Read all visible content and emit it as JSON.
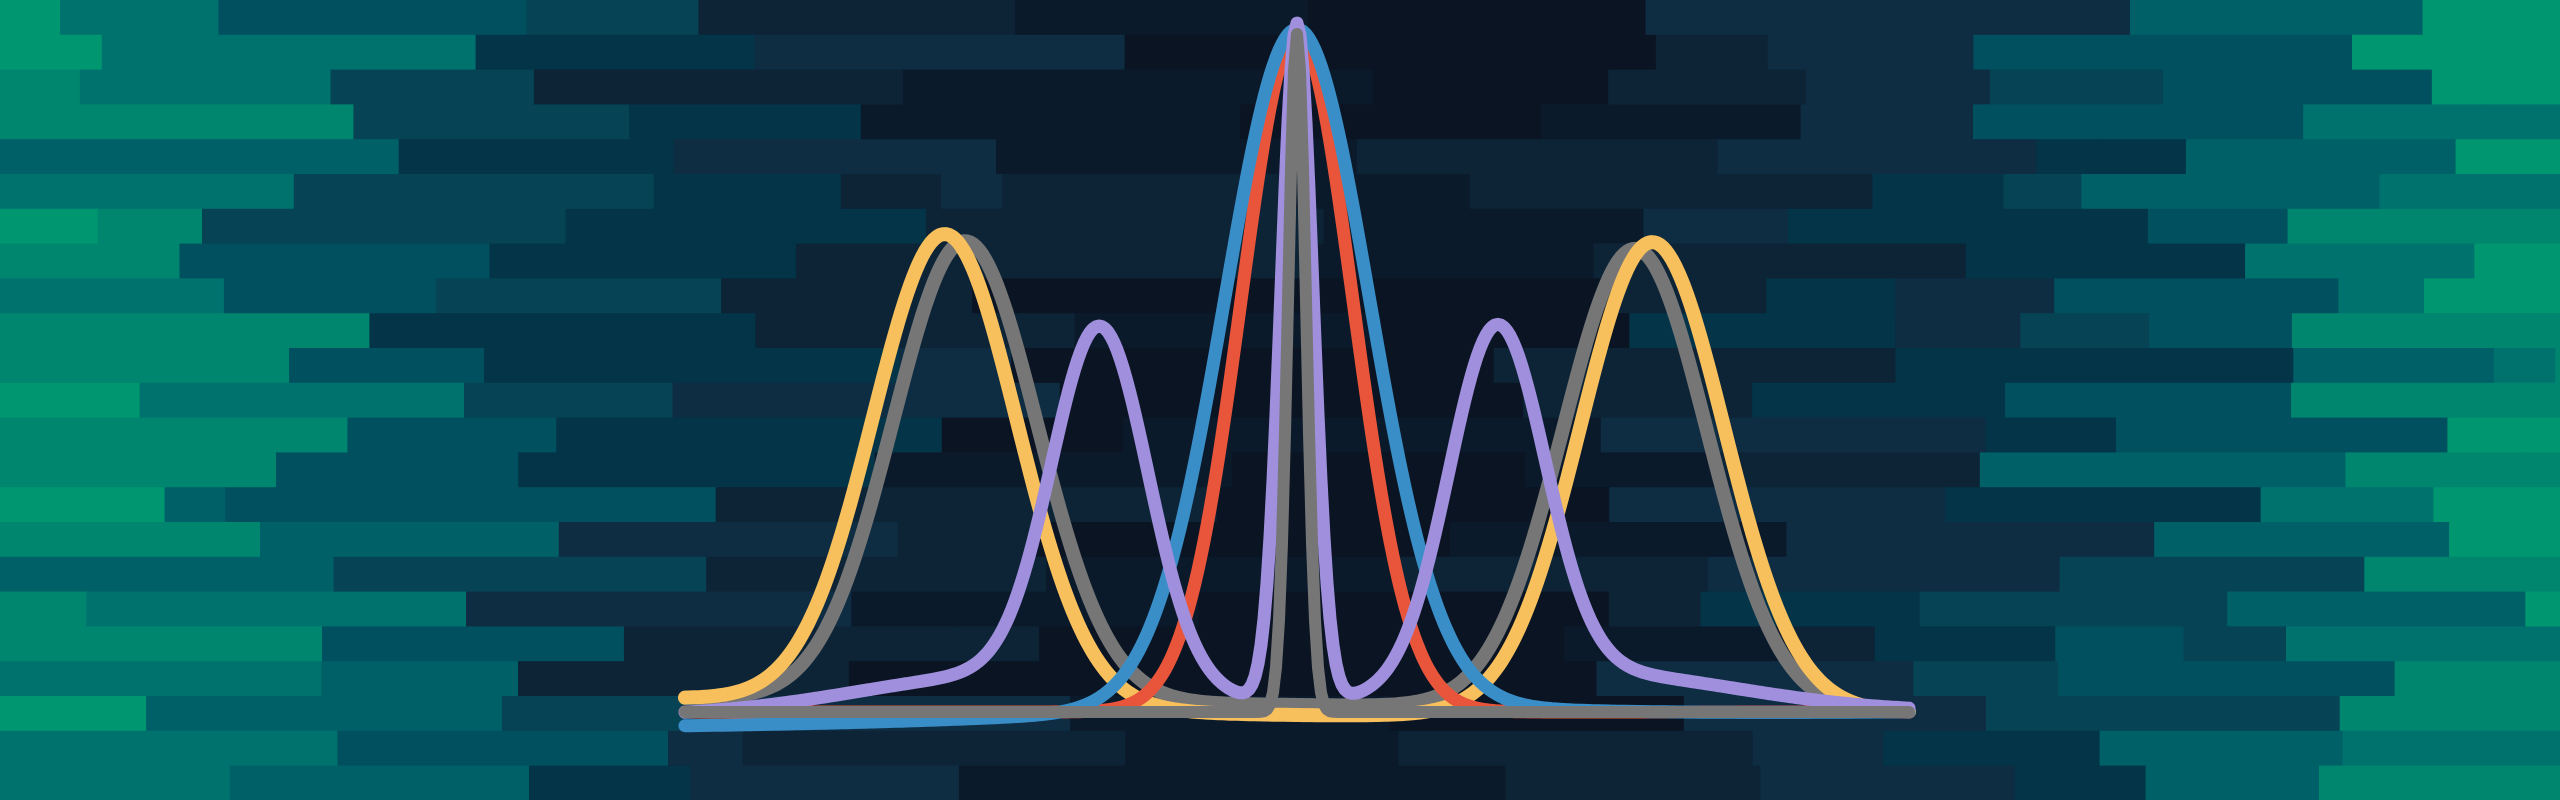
{
  "scene": {
    "description_tag": "abstract-banner",
    "background_palette": [
      "#0a1422",
      "#0b1a2b",
      "#0d2437",
      "#0e2c42",
      "#033447",
      "#064455",
      "#01505f",
      "#006068",
      "#00726e",
      "#00856f",
      "#00966f"
    ],
    "curve_palette": {
      "red": "#e8553a",
      "blue": "#3a8ec8",
      "lavender": "#9f8fdd",
      "gray": "#767676",
      "gold": "#f7c05c"
    }
  }
}
